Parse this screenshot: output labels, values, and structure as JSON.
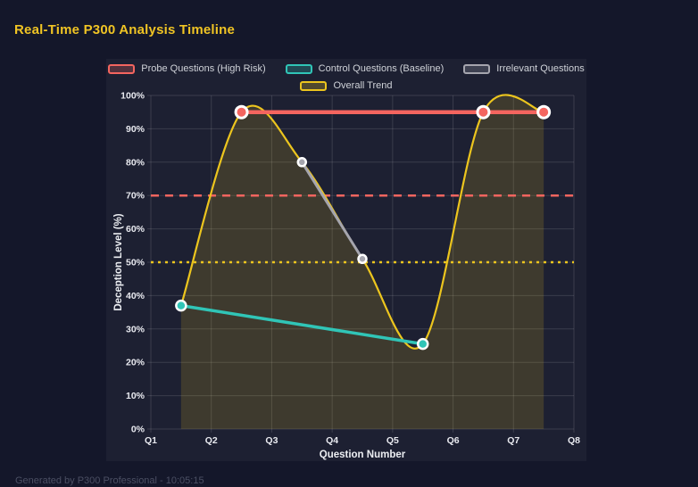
{
  "page": {
    "title": "Real-Time P300 Analysis Timeline",
    "footer": "Generated by P300 Professional - 10:05:15",
    "colors": {
      "background": "#14172a",
      "panel": "#1d2032",
      "title": "#f0c424",
      "grid": "rgba(255,255,255,0.13)",
      "tick_text": "#e9eaf0",
      "legend_text": "#cfd2d8",
      "footer_text": "#4b4f63"
    }
  },
  "chart_data": {
    "type": "line",
    "title": "Real-Time P300 Analysis Timeline",
    "xlabel": "Question Number",
    "ylabel": "Deception Level (%)",
    "x_ticks": [
      "Q1",
      "Q2",
      "Q3",
      "Q4",
      "Q5",
      "Q6",
      "Q7",
      "Q8"
    ],
    "x_range": [
      1,
      8
    ],
    "ylim": [
      0,
      100
    ],
    "y_tick_step": 10,
    "y_tick_suffix": "%",
    "grid": true,
    "legend_position": "top",
    "series": [
      {
        "name": "Probe Questions (High Risk)",
        "color": "#f4655f",
        "points": [
          {
            "x": 2.5,
            "y": 95
          },
          {
            "x": 6.5,
            "y": 95
          },
          {
            "x": 7.5,
            "y": 95
          }
        ],
        "point_radius": 6.5,
        "line_width": 4.5,
        "curve": false,
        "fill": false
      },
      {
        "name": "Control Questions (Baseline)",
        "color": "#30c5b7",
        "points": [
          {
            "x": 1.5,
            "y": 37
          },
          {
            "x": 5.5,
            "y": 25.5
          }
        ],
        "point_radius": 5.5,
        "line_width": 3.5,
        "curve": false,
        "fill": false
      },
      {
        "name": "Irrelevant Questions",
        "color": "#a5a5ae",
        "points": [
          {
            "x": 3.5,
            "y": 80
          },
          {
            "x": 4.5,
            "y": 51
          }
        ],
        "point_radius": 4.5,
        "line_width": 3,
        "curve": false,
        "fill": false
      },
      {
        "name": "Overall Trend",
        "color": "#ecc51e",
        "points": [
          {
            "x": 1.5,
            "y": 37
          },
          {
            "x": 2.5,
            "y": 95
          },
          {
            "x": 3.5,
            "y": 80
          },
          {
            "x": 4.5,
            "y": 51
          },
          {
            "x": 5.5,
            "y": 25.5
          },
          {
            "x": 6.5,
            "y": 95
          },
          {
            "x": 7.5,
            "y": 95
          }
        ],
        "point_radius": 0,
        "line_width": 2.2,
        "curve": true,
        "fill": true,
        "fill_opacity": 0.16
      }
    ],
    "annotations": [
      {
        "type": "hline",
        "name": "high-risk-threshold",
        "y": 70,
        "color": "#f4655f",
        "dash": [
          9,
          7
        ],
        "width": 2.5
      },
      {
        "type": "hline",
        "name": "baseline-threshold",
        "y": 50,
        "color": "#ecc51e",
        "dash": [
          3,
          5
        ],
        "width": 2.5
      }
    ]
  }
}
